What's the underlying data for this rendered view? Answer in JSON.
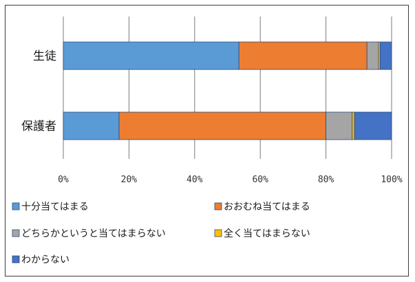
{
  "chart_data": {
    "type": "bar",
    "orientation": "horizontal",
    "stacked": true,
    "normalized": true,
    "categories": [
      "生徒",
      "保護者"
    ],
    "series": [
      {
        "name": "十分当てはまる",
        "color": "#5b9bd5",
        "values": [
          53.5,
          17
        ]
      },
      {
        "name": "おおむね当てはまる",
        "color": "#ed7d31",
        "values": [
          39,
          63
        ]
      },
      {
        "name": "どちらかというと当てはまらない",
        "color": "#a5a5a5",
        "values": [
          3.5,
          8
        ]
      },
      {
        "name": "全く当てはまらない",
        "color": "#ffc000",
        "values": [
          0.5,
          0.7
        ]
      },
      {
        "name": "わからない",
        "color": "#4472c4",
        "values": [
          3.5,
          11.3
        ]
      }
    ],
    "xlim": [
      0,
      100
    ],
    "xticks": [
      "0%",
      "20%",
      "40%",
      "60%",
      "80%",
      "100%"
    ],
    "grid": "vertical",
    "legend_position": "bottom",
    "title": "",
    "xlabel": "",
    "ylabel": ""
  }
}
